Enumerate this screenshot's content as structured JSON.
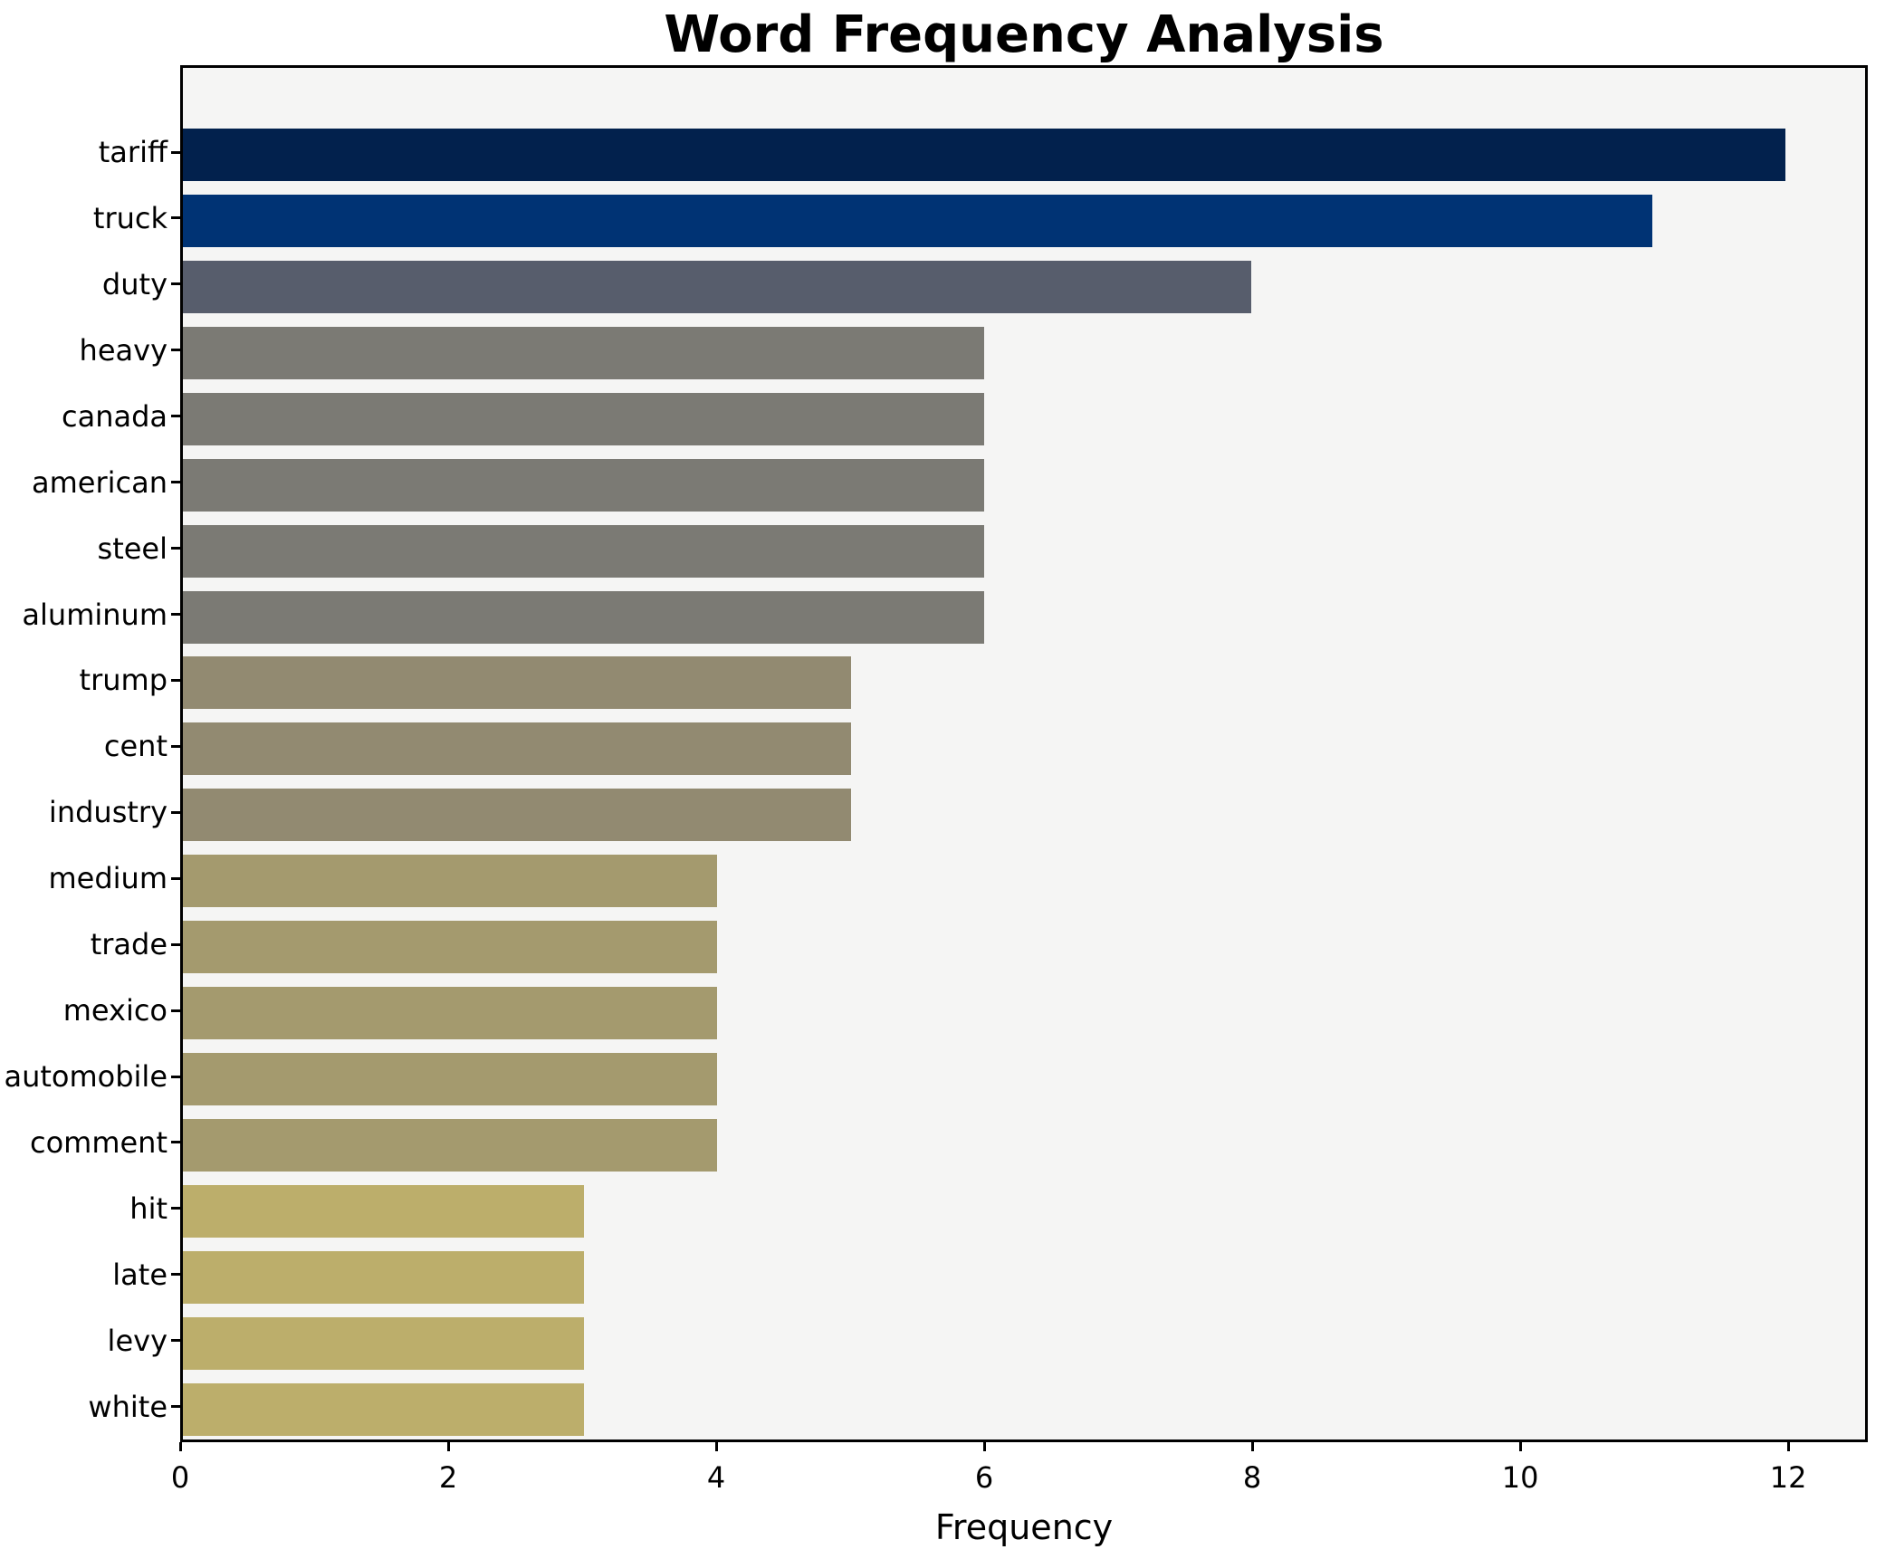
{
  "chart_data": {
    "type": "bar",
    "orientation": "horizontal",
    "title": "Word Frequency Analysis",
    "xlabel": "Frequency",
    "ylabel": "",
    "categories": [
      "tariff",
      "truck",
      "duty",
      "heavy",
      "canada",
      "american",
      "steel",
      "aluminum",
      "trump",
      "cent",
      "industry",
      "medium",
      "trade",
      "mexico",
      "automobile",
      "comment",
      "hit",
      "late",
      "levy",
      "white"
    ],
    "values": [
      12,
      11,
      8,
      6,
      6,
      6,
      6,
      6,
      5,
      5,
      5,
      4,
      4,
      4,
      4,
      4,
      3,
      3,
      3,
      3
    ],
    "bar_colors": [
      "#02214d",
      "#003374",
      "#575d6c",
      "#7b7a74",
      "#7b7a74",
      "#7b7a74",
      "#7b7a74",
      "#7b7a74",
      "#928a71",
      "#928a71",
      "#928a71",
      "#a49a6e",
      "#a49a6e",
      "#a49a6e",
      "#a49a6e",
      "#a49a6e",
      "#bcae6b",
      "#bcae6b",
      "#bcae6b",
      "#bcae6b"
    ],
    "x_ticks": [
      0,
      2,
      4,
      6,
      8,
      10,
      12
    ],
    "xlim": [
      0,
      12.594
    ],
    "grid": false,
    "legend_position": "none",
    "plot_background": "#f5f5f4",
    "figure_background": "#ffffff",
    "spine_color": "#000000",
    "colormap": "cividis"
  }
}
